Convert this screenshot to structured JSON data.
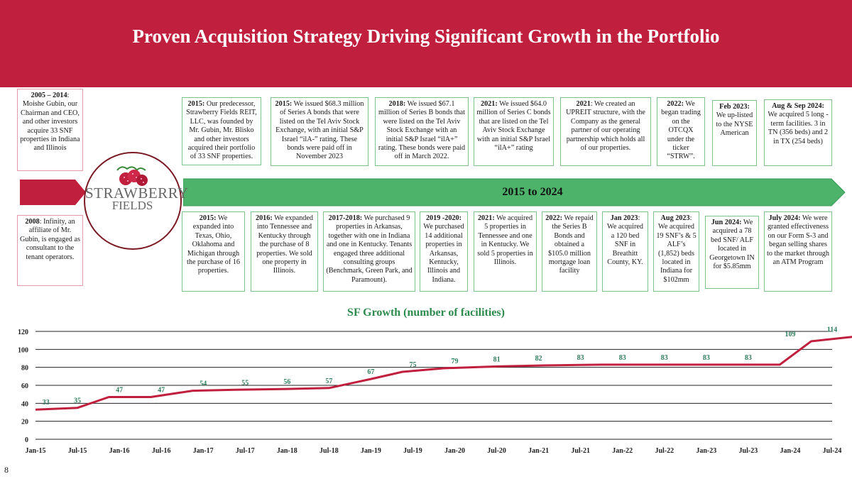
{
  "header": {
    "title": "Proven Acquisition Strategy Driving Significant Growth in the Portfolio"
  },
  "logo": {
    "line1": "STRAWBERRY",
    "line2": "FIELDS"
  },
  "timeline": {
    "label": "2015 to 2024"
  },
  "side_notes": [
    {
      "year": "2005 – 2014",
      "text": ": Moishe Gubin, our Chairman and CEO, and other investors acquire 33 SNF properties in Indiana and Illinois"
    },
    {
      "year": "2008",
      "text": ": Infinity, an affiliate of Mr. Gubin, is engaged as consultant to the tenant operators."
    }
  ],
  "top_events": [
    {
      "year": "2015:",
      "text": " Our predecessor, Strawberry Fields REIT, LLC, was founded by Mr. Gubin, Mr. Blisko and other investors acquired their portfolio of 33 SNF properties."
    },
    {
      "year": "2015:",
      "text": " We issued $68.3 million of Series A bonds that were listed on the Tel Aviv Stock Exchange, with an initial S&P Israel “ilA-” rating. These bonds were paid off in November 2023"
    },
    {
      "year": "2018:",
      "text": " We issued $67.1 million of Series B bonds that were listed on the Tel Aviv Stock Exchange with an initial S&P Israel “ilA+” rating. These bonds were paid off in March 2022."
    },
    {
      "year": "2021:",
      "text": " We issued $64.0 million of Series C bonds that are listed on the Tel Aviv Stock Exchange with an initial S&P Israel “ilA+” rating"
    },
    {
      "year": "2021",
      "text": ": We created an UPREIT structure, with the Company as the general partner of our operating partnership which holds all of our properties."
    },
    {
      "year": "2022:",
      "text": " We began trading on the OTCQX under the ticker “STRW”."
    },
    {
      "year": "Feb 2023:",
      "text": " We up-listed to the NYSE American"
    },
    {
      "year": "Aug & Sep 2024:",
      "text": " We acquired 5 long -term facilities. 3 in TN (356 beds) and 2 in TX (254 beds)"
    }
  ],
  "bottom_events": [
    {
      "year": "2015:",
      "text": " We expanded into Texas, Ohio, Oklahoma and Michigan through the purchase of 16 properties."
    },
    {
      "year": "2016:",
      "text": " We expanded into Tennessee and Kentucky through the purchase of 8 properties. We sold one property in Illinois."
    },
    {
      "year": "2017-2018:",
      "text": " We purchased 9 properties in Arkansas, together with one in Indiana and one in Kentucky. Tenants engaged three additional consulting groups (Benchmark, Green Park, and Paramount)."
    },
    {
      "year": "2019 -2020:",
      "text": " We purchased 14 additional properties in Arkansas, Kentucky, Illinois and Indiana."
    },
    {
      "year": "2021:",
      "text": " We acquired 5 properties in Tennessee and one in Kentucky. We sold 5 properties in Illinois."
    },
    {
      "year": "2022:",
      "text": " We repaid the Series B Bonds and obtained a $105.0 million mortgage loan facility"
    },
    {
      "year": "Jan 2023",
      "text": ": We acquired a 120 bed SNF in Breathitt County, KY."
    },
    {
      "year": "Aug 2023",
      "text": ": We acquired 19 SNF’s & 5 ALF’s (1,852) beds located in Indiana for $102mm"
    },
    {
      "year": "Jun 2024:",
      "text": " We acquired a 78 bed SNF/ ALF located in Georgetown IN for $5.85mm"
    },
    {
      "year": "July 2024:",
      "text": " We were granted effectiveness on our Form S-3 and began selling shares to the market through an ATM Program"
    }
  ],
  "page_number": "8",
  "colors": {
    "header": "#c0203e",
    "timeline": "#4db36a",
    "line": "#c0203e",
    "label": "#2e7d5b",
    "title": "#2e8b4e"
  },
  "chart_data": {
    "type": "line",
    "title": "SF Growth (number of facilities)",
    "xlabel": "",
    "ylabel": "",
    "ylim": [
      0,
      120
    ],
    "yticks": [
      0,
      20,
      40,
      60,
      80,
      100,
      120
    ],
    "x_ticks": [
      "Jan-15",
      "Jul-15",
      "Jan-16",
      "Jul-16",
      "Jan-17",
      "Jul-17",
      "Jan-18",
      "Jul-18",
      "Jan-19",
      "Jul-19",
      "Jan-20",
      "Jul-20",
      "Jan-21",
      "Jul-21",
      "Jan-22",
      "Jul-22",
      "Jan-23",
      "Jul-23",
      "Jan-24",
      "Jul-24"
    ],
    "grid": true,
    "series": [
      {
        "name": "Facilities",
        "points": [
          {
            "x": 0,
            "y": 33
          },
          {
            "x": 1,
            "y": 35
          },
          {
            "x": 1.75,
            "y": 47
          },
          {
            "x": 2.75,
            "y": 47
          },
          {
            "x": 3.75,
            "y": 54
          },
          {
            "x": 4.75,
            "y": 55
          },
          {
            "x": 6,
            "y": 56
          },
          {
            "x": 7,
            "y": 57
          },
          {
            "x": 8,
            "y": 67
          },
          {
            "x": 8.75,
            "y": 75
          },
          {
            "x": 9.75,
            "y": 79
          },
          {
            "x": 11,
            "y": 81
          },
          {
            "x": 12,
            "y": 82
          },
          {
            "x": 13.5,
            "y": 83
          },
          {
            "x": 14.5,
            "y": 83
          },
          {
            "x": 15.5,
            "y": 83
          },
          {
            "x": 16.75,
            "y": 83
          },
          {
            "x": 17.75,
            "y": 83
          },
          {
            "x": 18.5,
            "y": 109
          },
          {
            "x": 19.5,
            "y": 114
          }
        ],
        "labels": [
          {
            "x": 0.25,
            "y": 33,
            "text": "33"
          },
          {
            "x": 1,
            "y": 35,
            "text": "35"
          },
          {
            "x": 2,
            "y": 47,
            "text": "47"
          },
          {
            "x": 3,
            "y": 47,
            "text": "47"
          },
          {
            "x": 4,
            "y": 54,
            "text": "54"
          },
          {
            "x": 5,
            "y": 55,
            "text": "55"
          },
          {
            "x": 6,
            "y": 56,
            "text": "56"
          },
          {
            "x": 7,
            "y": 57,
            "text": "57"
          },
          {
            "x": 8,
            "y": 67,
            "text": "67"
          },
          {
            "x": 9,
            "y": 75,
            "text": "75"
          },
          {
            "x": 10,
            "y": 79,
            "text": "79"
          },
          {
            "x": 11,
            "y": 81,
            "text": "81"
          },
          {
            "x": 12,
            "y": 82,
            "text": "82"
          },
          {
            "x": 13,
            "y": 83,
            "text": "83"
          },
          {
            "x": 14,
            "y": 83,
            "text": "83"
          },
          {
            "x": 15,
            "y": 83,
            "text": "83"
          },
          {
            "x": 16,
            "y": 83,
            "text": "83"
          },
          {
            "x": 17,
            "y": 83,
            "text": "83"
          },
          {
            "x": 18,
            "y": 109,
            "text": "109"
          },
          {
            "x": 19,
            "y": 114,
            "text": "114"
          }
        ]
      }
    ]
  }
}
